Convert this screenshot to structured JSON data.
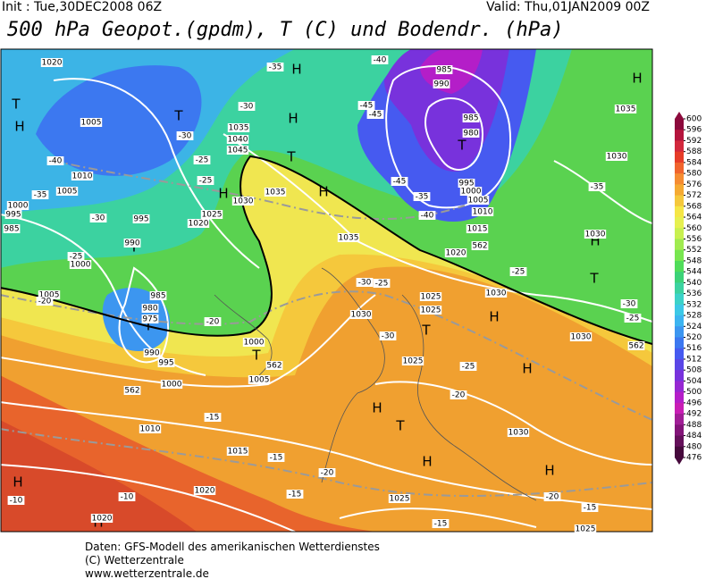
{
  "header": {
    "init": "Init : Tue,30DEC2008 06Z",
    "valid": "Valid: Thu,01JAN2009 00Z",
    "title": "500 hPa Geopot.(gpdm), T (C) und Bodendr. (hPa)"
  },
  "colorbar": {
    "ticks": [
      600,
      596,
      592,
      588,
      584,
      580,
      576,
      572,
      568,
      564,
      560,
      556,
      552,
      548,
      544,
      540,
      536,
      532,
      528,
      524,
      520,
      516,
      512,
      508,
      504,
      500,
      496,
      492,
      488,
      484,
      480,
      476
    ],
    "colors": [
      "#8c0a3c",
      "#b4143c",
      "#d2283c",
      "#e63c28",
      "#f0642d",
      "#f58c32",
      "#f5aa32",
      "#f5c83c",
      "#f5e646",
      "#e6f050",
      "#c8f050",
      "#a0eb50",
      "#78e650",
      "#50dc5a",
      "#3cd278",
      "#3cd2a0",
      "#3cd2c8",
      "#3cc8e6",
      "#3cb4f0",
      "#3c96f0",
      "#3c78f0",
      "#465af0",
      "#5a46e6",
      "#7832dc",
      "#9628d2",
      "#b41ec8",
      "#c81eb4",
      "#a01e96",
      "#821478",
      "#64105a",
      "#460a3c"
    ]
  },
  "map_labels": [
    "H",
    "H",
    "H",
    "H",
    "H",
    "H",
    "H",
    "H",
    "H",
    "H",
    "H",
    "H",
    "H",
    "H",
    "T",
    "T",
    "T",
    "T",
    "T",
    "T",
    "T",
    "T",
    "T",
    "T",
    "1020",
    "1005",
    "1010",
    "1005",
    "1000",
    "995",
    "985",
    "1000",
    "995",
    "990",
    "1005",
    "985",
    "980",
    "975",
    "990",
    "995",
    "1000",
    "1000",
    "1005",
    "1010",
    "1015",
    "1020",
    "1020",
    "1025",
    "1030",
    "1025",
    "1030",
    "1025",
    "1025",
    "1030",
    "1035",
    "1035",
    "1030",
    "1025",
    "1020",
    "1040",
    "1045",
    "1035",
    "985",
    "990",
    "985",
    "980",
    "995",
    "1000",
    "1005",
    "1010",
    "1015",
    "1020",
    "1035",
    "1030",
    "1030",
    "1030",
    "1025",
    "-35",
    "-30",
    "-30",
    "-25",
    "-25",
    "-35",
    "-40",
    "-30",
    "-25",
    "-20",
    "-20",
    "-15",
    "-15",
    "-10",
    "-15",
    "-10",
    "-15",
    "-20",
    "-20",
    "-25",
    "-30",
    "-25",
    "-25",
    "-30",
    "-35",
    "-40",
    "-45",
    "-45",
    "-40",
    "-45",
    "-35",
    "-30",
    "-25",
    "-20",
    "-15",
    "562",
    "562",
    "562",
    "562"
  ],
  "footer": [
    "Daten: GFS-Modell des amerikanischen Wetterdienstes",
    "(C) Wetterzentrale",
    "www.wetterzentrale.de"
  ]
}
